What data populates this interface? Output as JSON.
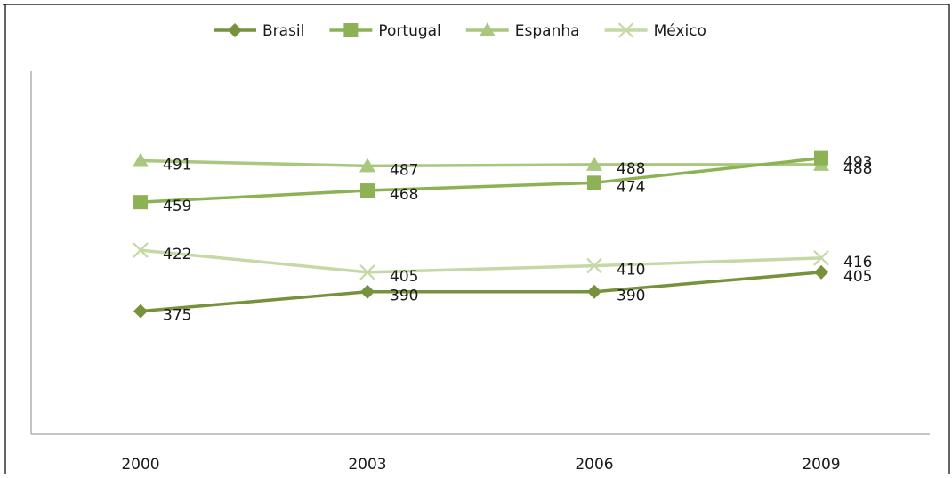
{
  "chart_data": {
    "type": "line",
    "title": "",
    "xlabel": "",
    "ylabel": "",
    "categories": [
      "2000",
      "2003",
      "2006",
      "2009"
    ],
    "ylim": [
      280,
      560
    ],
    "grid": false,
    "legend_position": "top",
    "series": [
      {
        "name": "Brasil",
        "values": [
          375,
          390,
          390,
          405
        ],
        "labels": [
          "375",
          "390",
          "390",
          "405"
        ],
        "color": "#76923c",
        "marker": "diamond"
      },
      {
        "name": "Portugal",
        "values": [
          459,
          468,
          474,
          493
        ],
        "labels": [
          "459",
          "468",
          "474",
          "493"
        ],
        "color": "#8db255",
        "marker": "square"
      },
      {
        "name": "Espanha",
        "values": [
          491,
          487,
          488,
          488
        ],
        "labels": [
          "491",
          "487",
          "488",
          "488"
        ],
        "color": "#a9c77f",
        "marker": "triangle"
      },
      {
        "name": "México",
        "values": [
          422,
          405,
          410,
          416
        ],
        "labels": [
          "422",
          "405",
          "410",
          "416"
        ],
        "color": "#c4d9a5",
        "marker": "x"
      }
    ]
  },
  "colors": {
    "axis": "#b0b0b0",
    "frame": "#000000",
    "text": "#1a1a1a"
  }
}
